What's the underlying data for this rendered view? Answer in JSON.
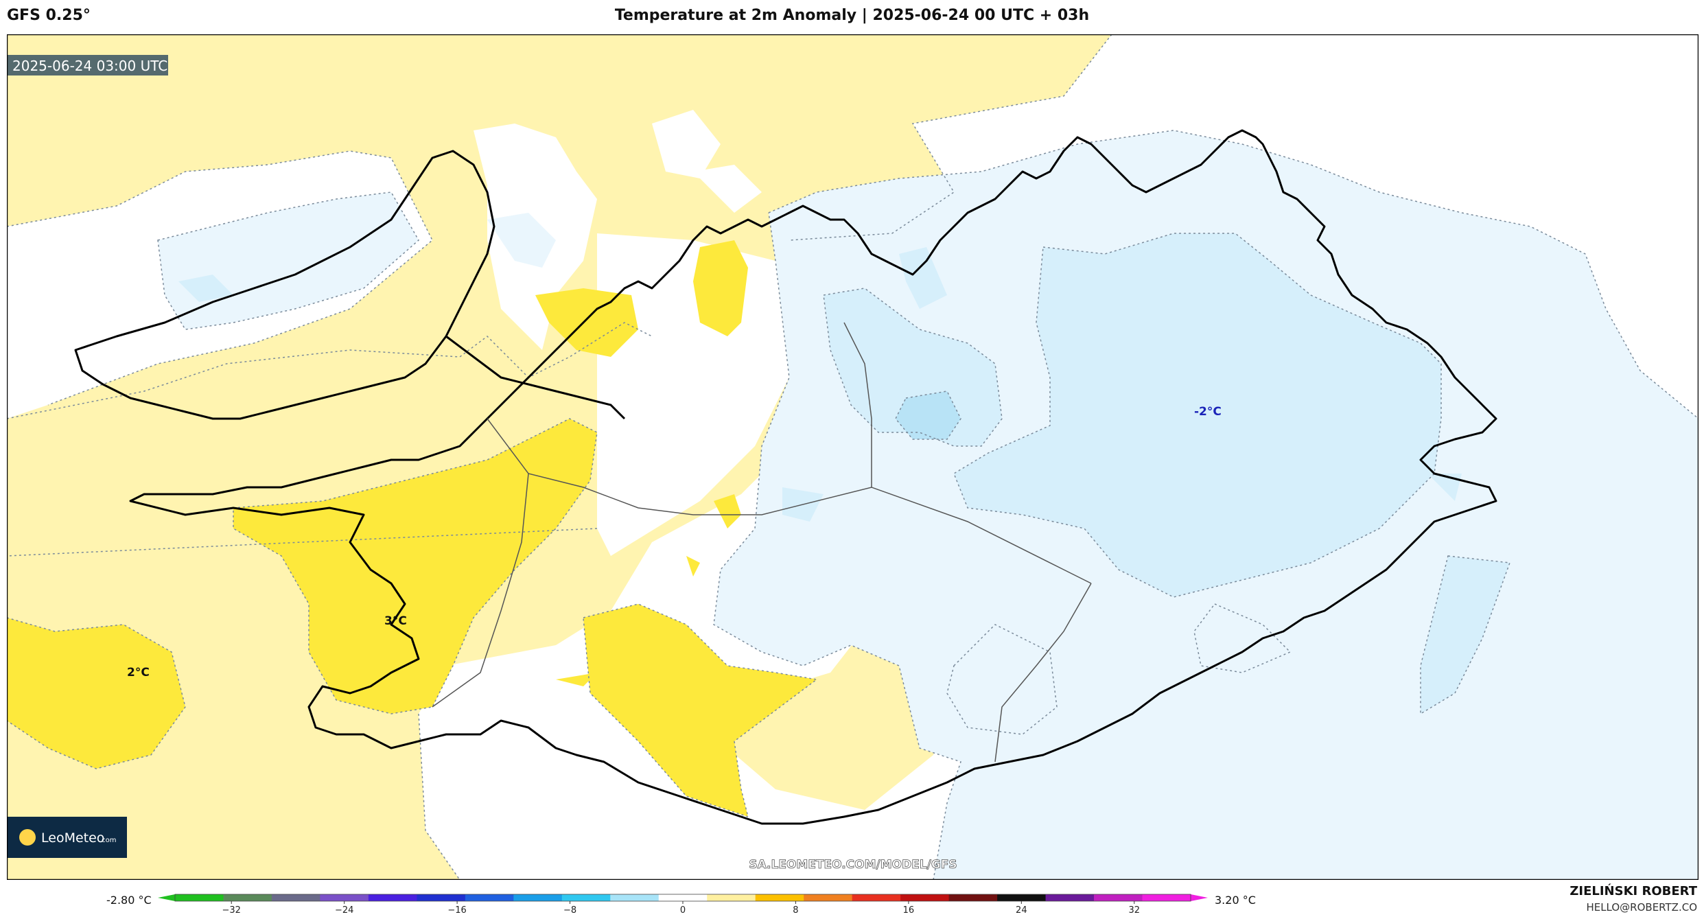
{
  "header": {
    "model": "GFS 0.25°",
    "title": "Temperature at 2m Anomaly | 2025-06-24 00 UTC + 03h"
  },
  "map": {
    "valid_time": "2025-06-24 03:00 UTC",
    "watermark": "SA.LEOMETEO.COM/MODEL/GFS",
    "logo_text": "LeoMeteo",
    "logo_suffix": ".com",
    "labels": {
      "west": "2°C",
      "southwest": "3°C",
      "east": "-2°C"
    },
    "colors": {
      "pale_yellow": "#fff4b0",
      "yellow": "#fde93c",
      "pale_blue": "#eaf6fd",
      "light_blue": "#d6effb",
      "mid_blue": "#b8e3f6",
      "label_blue": "#1a23b8"
    }
  },
  "colorbar": {
    "min_label": "-2.80 °C",
    "max_label": "3.20 °C",
    "ticks": [
      "−32",
      "−24",
      "−16",
      "−8",
      "0",
      "8",
      "16",
      "24",
      "32"
    ],
    "tick_values": [
      -32,
      -24,
      -16,
      -8,
      0,
      8,
      16,
      24,
      32
    ],
    "range": [
      -36,
      36
    ],
    "colors": [
      "#20c020",
      "#5a8a5a",
      "#6a6a8a",
      "#7a50c8",
      "#4a20e0",
      "#2030d0",
      "#2060e0",
      "#1a9ee8",
      "#30c8f0",
      "#a8e4f8",
      "#ffffff",
      "#fff0a0",
      "#fcc000",
      "#f08020",
      "#e83020",
      "#c01010",
      "#701010",
      "#101010",
      "#6a1a9a",
      "#c020c0",
      "#f020e0"
    ]
  },
  "credits": {
    "author": "ZIELIŃSKI ROBERT",
    "email": "HELLO@ROBERTZ.CO"
  }
}
